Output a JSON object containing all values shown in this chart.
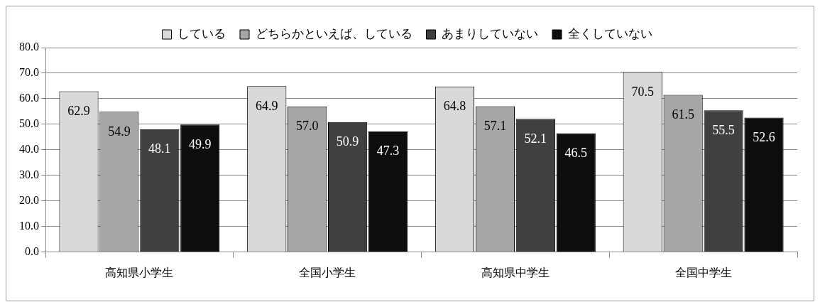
{
  "chart_data": {
    "type": "bar",
    "categories": [
      "高知県小学生",
      "全国小学生",
      "高知県中学生",
      "全国中学生"
    ],
    "series": [
      {
        "name": "している",
        "color": "#d9d9d9",
        "values": [
          62.9,
          64.9,
          64.8,
          70.5
        ],
        "value_labels": [
          "62.9",
          "64.9",
          "64.8",
          "70.5"
        ]
      },
      {
        "name": "どちらかといえば、している",
        "color": "#a6a6a6",
        "values": [
          54.9,
          57.0,
          57.1,
          61.5
        ],
        "value_labels": [
          "54.9",
          "57.0",
          "57.1",
          "61.5"
        ]
      },
      {
        "name": "あまりしていない",
        "color": "#404040",
        "values": [
          48.1,
          50.9,
          52.1,
          55.5
        ],
        "value_labels": [
          "48.1",
          "50.9",
          "52.1",
          "55.5"
        ]
      },
      {
        "name": "全くしていない",
        "color": "#0d0d0d",
        "values": [
          49.9,
          47.3,
          46.5,
          52.6
        ],
        "value_labels": [
          "49.9",
          "47.3",
          "46.5",
          "52.6"
        ]
      }
    ],
    "ylim": [
      0,
      80
    ],
    "yticks": [
      {
        "value": 0,
        "label": "0.0"
      },
      {
        "value": 10,
        "label": "10.0"
      },
      {
        "value": 20,
        "label": "20.0"
      },
      {
        "value": 30,
        "label": "30.0"
      },
      {
        "value": 40,
        "label": "40.0"
      },
      {
        "value": 50,
        "label": "50.0"
      },
      {
        "value": 60,
        "label": "60.0"
      },
      {
        "value": 70,
        "label": "70.0"
      },
      {
        "value": 80,
        "label": "80.0"
      }
    ],
    "grid": "y",
    "legend": "top"
  }
}
